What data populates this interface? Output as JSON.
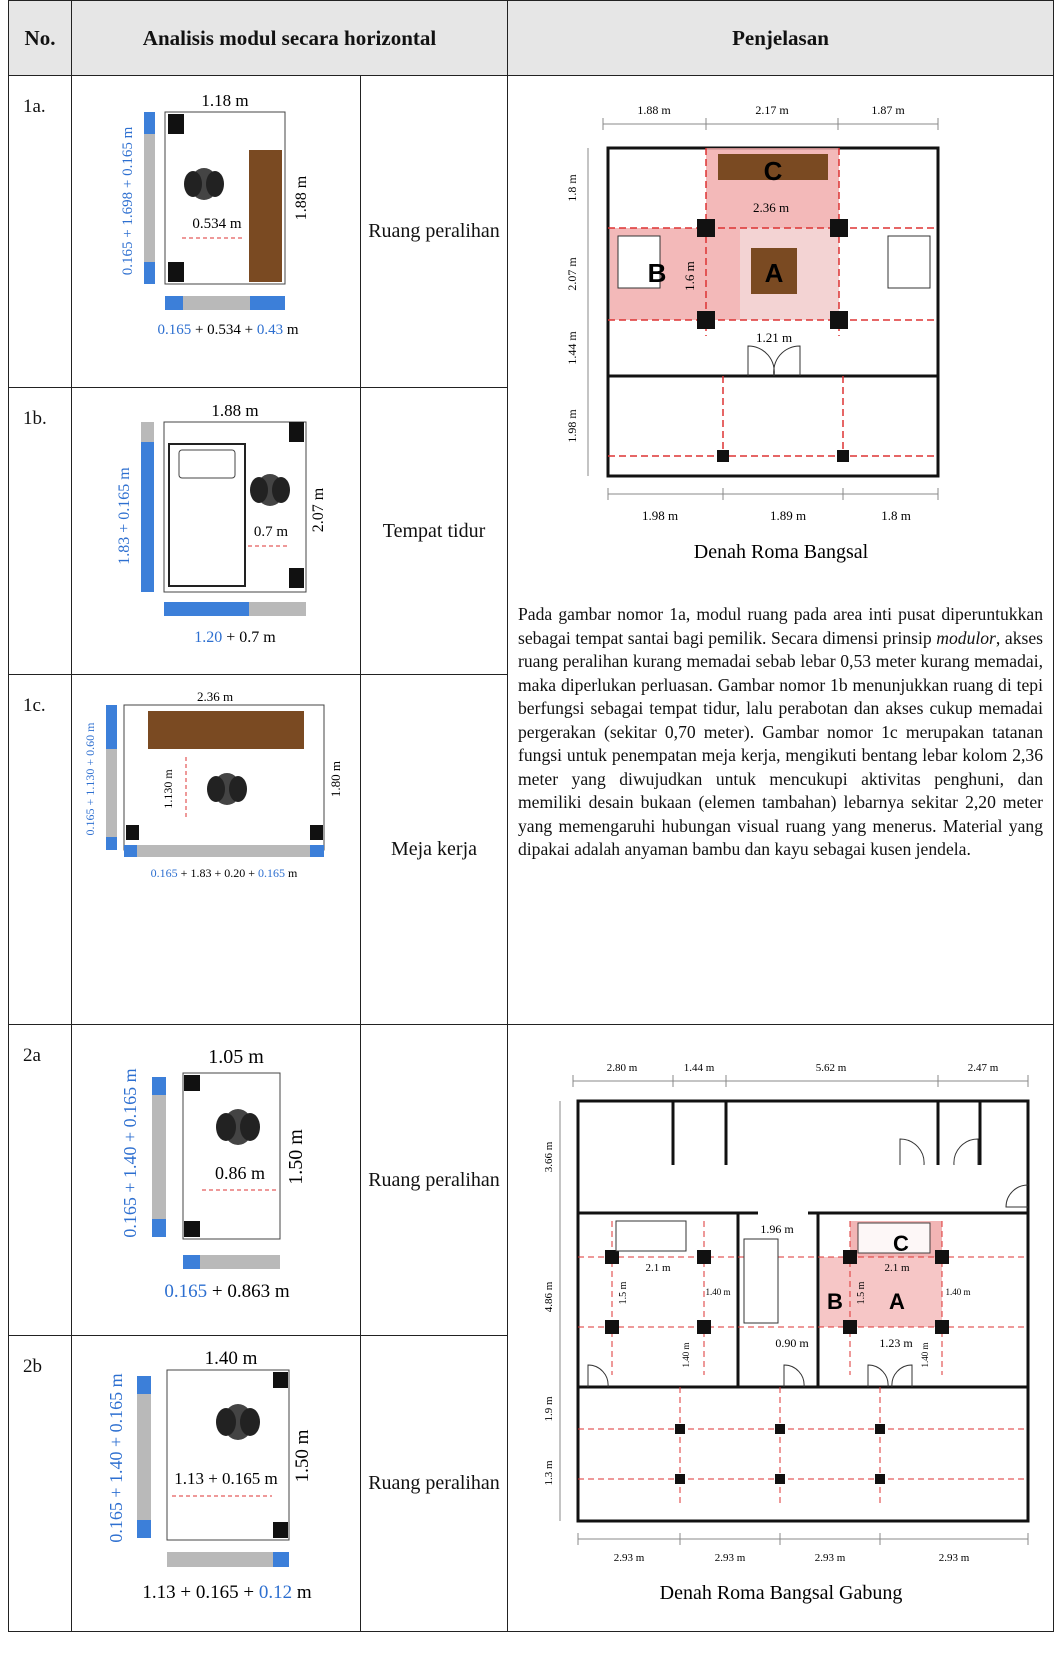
{
  "header": {
    "no": "No.",
    "analysis": "Analisis modul secara horizontal",
    "explanation": "Penjelasan"
  },
  "rows": [
    {
      "no": "1a.",
      "function": "Ruang peralihan",
      "width_label": "1.18 m",
      "height_label": "1.88 m",
      "inner_label": "0.534 m",
      "vertical_dim": [
        "0.165",
        " + 1.698 + ",
        "0.165",
        " m"
      ],
      "horizontal_dim": [
        "0.165",
        " + 0.534 + ",
        "0.43",
        " m"
      ]
    },
    {
      "no": "1b.",
      "function": "Tempat tidur",
      "width_label": "1.88 m",
      "height_label": "2.07 m",
      "inner_label": "0.7 m",
      "vertical_dim": [
        "1.83",
        " + 0.165 m"
      ],
      "horizontal_dim": [
        "1.20",
        " + 0.7 m"
      ]
    },
    {
      "no": "1c.",
      "function": "Meja kerja",
      "width_label": "2.36 m",
      "height_label": "1.80 m",
      "inner_label": "1.130 m",
      "vertical_dim": [
        "0.165",
        " + 1.130 + ",
        "0.60",
        " m"
      ],
      "horizontal_dim": [
        "0.165",
        " + 1.83 + 0.20 + ",
        "0.165",
        " m"
      ]
    },
    {
      "no": "2a",
      "function": "Ruang peralihan",
      "width_label": "1.05 m",
      "height_label": "1.50 m",
      "inner_label": "0.86 m",
      "vertical_dim": [
        "0.165",
        " + 1.40 + ",
        "0.165",
        " m"
      ],
      "horizontal_dim": [
        "0.165",
        " + 0.863 m"
      ]
    },
    {
      "no": "2b",
      "function": "Ruang peralihan",
      "width_label": "1.40 m",
      "height_label": "1.50 m",
      "inner_label": "1.13 + 0.165 m",
      "vertical_dim": [
        "0.165",
        " + 1.40 + ",
        "0.165",
        " m"
      ],
      "horizontal_dim": [
        "1.13 + 0.165 + ",
        "0.12",
        " m"
      ]
    }
  ],
  "plan1": {
    "caption": "Denah Roma Bangsal",
    "top_dims": [
      "1.88 m",
      "2.17 m",
      "1.87 m"
    ],
    "bottom_dims": [
      "1.98 m",
      "1.89 m",
      "1.8 m"
    ],
    "left_dims": [
      "1.8 m",
      "2.07 m",
      "1.44 m",
      "1.98 m"
    ],
    "inner": {
      "c": "C",
      "b": "B",
      "a": "A",
      "span": "2.36 m",
      "depth": "1.6 m",
      "door": "1.21 m"
    }
  },
  "paragraph": {
    "before": "Pada gambar nomor 1a, modul ruang pada area inti pusat diperuntukkan sebagai tempat santai bagi pemilik. Secara dimensi prinsip ",
    "italic": "modulor",
    "after": ", akses ruang peralihan kurang memadai sebab lebar 0,53 meter kurang memadai, maka diperlukan perluasan. Gambar nomor 1b menunjukkan ruang di tepi berfungsi sebagai tempat tidur, lalu perabotan dan akses  cukup memadai pergerakan (sekitar 0,70 meter). Gambar nomor 1c merupakan tatanan fungsi untuk penempatan meja kerja, mengikuti bentang lebar kolom 2,36 meter yang diwujudkan untuk mencukupi aktivitas penghuni, dan memiliki desain bukaan (elemen tambahan) lebarnya sekitar 2,20 meter yang memengaruhi hubungan visual ruang yang menerus. Material yang dipakai adalah anyaman bambu dan kayu sebagai kusen jendela."
  },
  "plan2": {
    "caption": "Denah Roma Bangsal Gabung",
    "top_dims": [
      "2.80 m",
      "1.44 m",
      "5.62 m",
      "2.47 m"
    ],
    "bottom_dims": [
      "2.93 m",
      "2.93 m",
      "2.93 m",
      "2.93 m"
    ],
    "left_dims": [
      "3.66 m",
      "4.86 m",
      "1.9 m",
      "1.3 m"
    ],
    "inner": {
      "c": "C",
      "b": "B",
      "a": "A",
      "bed_dim": "1.96 m",
      "w1": "2.1 m",
      "w2": "2.1 m",
      "d1": "1.5 m",
      "d2": "1.5 m",
      "h1": "1.40 m",
      "h2": "1.40 m",
      "h3": "1.40 m",
      "h4": "1.40 m",
      "door1": "0.90 m",
      "door2": "1.23 m"
    }
  }
}
